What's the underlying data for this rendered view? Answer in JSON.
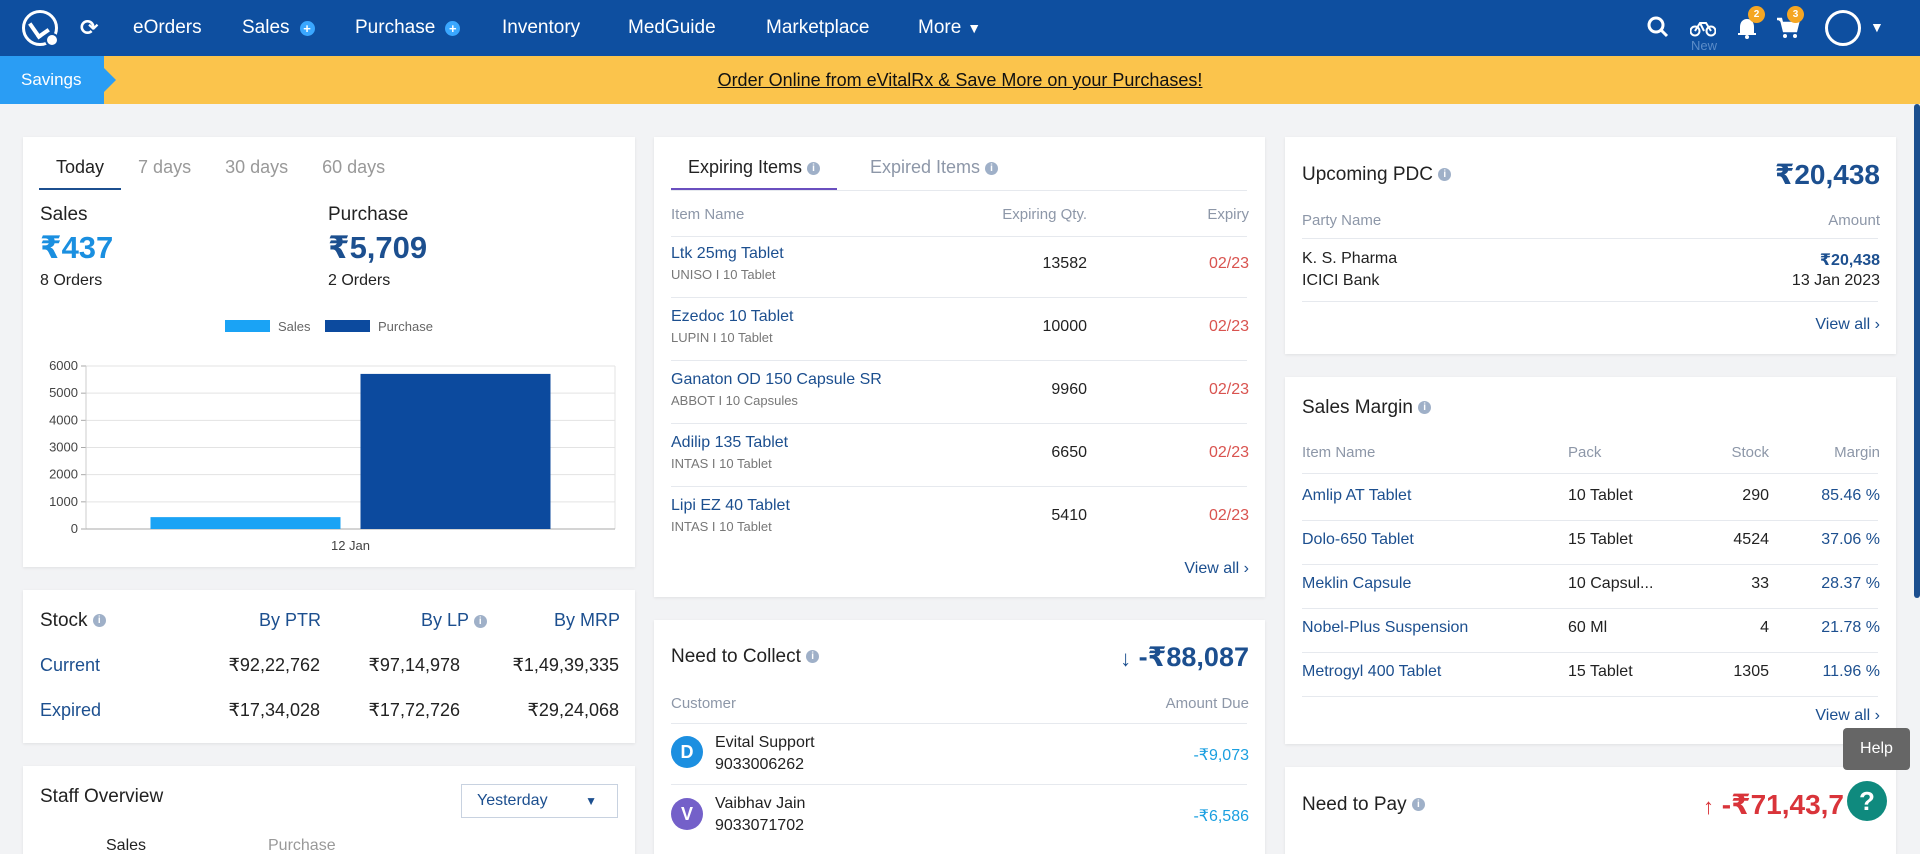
{
  "nav": {
    "items": [
      {
        "label": "eOrders",
        "plus": false
      },
      {
        "label": "Sales",
        "plus": true
      },
      {
        "label": "Purchase",
        "plus": true
      },
      {
        "label": "Inventory",
        "plus": false
      },
      {
        "label": "MedGuide",
        "plus": false
      },
      {
        "label": "Marketplace",
        "plus": false
      },
      {
        "label": "More",
        "plus": false
      }
    ],
    "new_label": "New",
    "notification_count": "2",
    "cart_count": "3"
  },
  "banner": {
    "savings_label": "Savings",
    "link_text": "Order Online from eVitalRx & Save More on your Purchases!"
  },
  "summary": {
    "tabs": [
      "Today",
      "7 days",
      "30 days",
      "60 days"
    ],
    "sales_label": "Sales",
    "sales_value": "₹437",
    "sales_orders": "8 Orders",
    "purchase_label": "Purchase",
    "purchase_value": "₹5,709",
    "purchase_orders": "2 Orders"
  },
  "chart_data": {
    "type": "bar",
    "categories": [
      "12 Jan"
    ],
    "series": [
      {
        "name": "Sales",
        "values": [
          437
        ],
        "color": "#1aa3f5"
      },
      {
        "name": "Purchase",
        "values": [
          5709
        ],
        "color": "#0c4a9e"
      }
    ],
    "yticks": [
      0,
      1000,
      2000,
      3000,
      4000,
      5000,
      6000
    ],
    "ylim": [
      0,
      6000
    ],
    "legend": "top"
  },
  "stock": {
    "title": "Stock",
    "cols": [
      "By PTR",
      "By LP",
      "By MRP"
    ],
    "rows": [
      {
        "label": "Current",
        "values": [
          "₹92,22,762",
          "₹97,14,978",
          "₹1,49,39,335"
        ]
      },
      {
        "label": "Expired",
        "values": [
          "₹17,34,028",
          "₹17,72,726",
          "₹29,24,068"
        ]
      }
    ]
  },
  "staff": {
    "title": "Staff Overview",
    "period": "Yesterday",
    "tab_sales": "Sales",
    "tab_purchase": "Purchase"
  },
  "expiring": {
    "tab_active": "Expiring Items",
    "tab_other": "Expired Items",
    "headers": [
      "Item Name",
      "Expiring Qty.",
      "Expiry"
    ],
    "rows": [
      {
        "name": "Ltk 25mg Tablet",
        "meta": "UNISO  I  10 Tablet",
        "qty": "13582",
        "expiry": "02/23"
      },
      {
        "name": "Ezedoc 10 Tablet",
        "meta": "LUPIN  I  10 Tablet",
        "qty": "10000",
        "expiry": "02/23"
      },
      {
        "name": "Ganaton OD 150 Capsule SR",
        "meta": "ABBOT  I  10 Capsules",
        "qty": "9960",
        "expiry": "02/23"
      },
      {
        "name": "Adilip 135 Tablet",
        "meta": "INTAS  I  10 Tablet",
        "qty": "6650",
        "expiry": "02/23"
      },
      {
        "name": "Lipi EZ 40 Tablet",
        "meta": "INTAS  I  10 Tablet",
        "qty": "5410",
        "expiry": "02/23"
      }
    ],
    "view_all": "View all"
  },
  "collect": {
    "title": "Need to Collect",
    "amount": "-₹88,087",
    "headers": [
      "Customer",
      "Amount Due"
    ],
    "rows": [
      {
        "initial": "D",
        "name": "Evital Support",
        "phone": "9033006262",
        "amount": "-₹9,073",
        "color": "#1c8fe0"
      },
      {
        "initial": "V",
        "name": "Vaibhav Jain",
        "phone": "9033071702",
        "amount": "-₹6,586",
        "color": "#7460c9"
      }
    ]
  },
  "pdc": {
    "title": "Upcoming PDC",
    "amount": "₹20,438",
    "headers": [
      "Party Name",
      "Amount"
    ],
    "party": "K. S. Pharma",
    "bank": "ICICI Bank",
    "row_amount": "₹20,438",
    "date": "13 Jan 2023",
    "view_all": "View all"
  },
  "margin": {
    "title": "Sales Margin",
    "headers": [
      "Item Name",
      "Pack",
      "Stock",
      "Margin"
    ],
    "rows": [
      {
        "name": "Amlip AT Tablet",
        "pack": "10 Tablet",
        "stock": "290",
        "margin": "85.46 %"
      },
      {
        "name": "Dolo-650 Tablet",
        "pack": "15 Tablet",
        "stock": "4524",
        "margin": "37.06 %"
      },
      {
        "name": "Meklin Capsule",
        "pack": "10 Capsul...",
        "stock": "33",
        "margin": "28.37 %"
      },
      {
        "name": "Nobel-Plus Suspension",
        "pack": "60 Ml",
        "stock": "4",
        "margin": "21.78 %"
      },
      {
        "name": "Metrogyl 400 Tablet",
        "pack": "15 Tablet",
        "stock": "1305",
        "margin": "11.96 %"
      }
    ],
    "view_all": "View all"
  },
  "pay": {
    "title": "Need to Pay",
    "amount": "-₹71,43,7"
  },
  "help": {
    "tooltip": "Help",
    "icon": "?"
  }
}
